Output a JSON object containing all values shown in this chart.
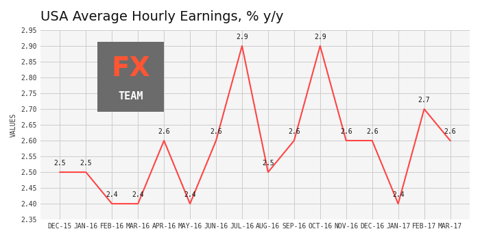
{
  "title": "USA Average Hourly Earnings, % y/y",
  "ylabel": "VALUES",
  "categories": [
    "DEC-15",
    "JAN-16",
    "FEB-16",
    "MAR-16",
    "APR-16",
    "MAY-16",
    "JUN-16",
    "JUL-16",
    "AUG-16",
    "SEP-16",
    "OCT-16",
    "NOV-16",
    "DEC-16",
    "JAN-17",
    "FEB-17",
    "MAR-17"
  ],
  "values": [
    2.5,
    2.5,
    2.4,
    2.4,
    2.6,
    2.4,
    2.6,
    2.9,
    2.5,
    2.6,
    2.9,
    2.6,
    2.6,
    2.4,
    2.7,
    2.6
  ],
  "annotations": [
    "2.5",
    "2.5",
    "2.4",
    "2.4",
    "2.6",
    "2.4",
    "2.6",
    "2.9",
    "2.5",
    "2.6",
    "2.9",
    "2.6",
    "2.6",
    "2.4",
    "2.7",
    "2.6"
  ],
  "ylim": [
    2.35,
    2.95
  ],
  "yticks": [
    2.35,
    2.4,
    2.45,
    2.5,
    2.55,
    2.6,
    2.65,
    2.7,
    2.75,
    2.8,
    2.85,
    2.9,
    2.95
  ],
  "line_color": "#FF4444",
  "bg_color": "#F5F5F5",
  "plot_bg": "#F5F5F5",
  "title_color": "#111111",
  "grid_color": "#CCCCCC",
  "tick_color": "#333333",
  "logo_bg": "#6B6B6B",
  "logo_fx_color": "#FF5533",
  "logo_team_color": "#FFFFFF"
}
